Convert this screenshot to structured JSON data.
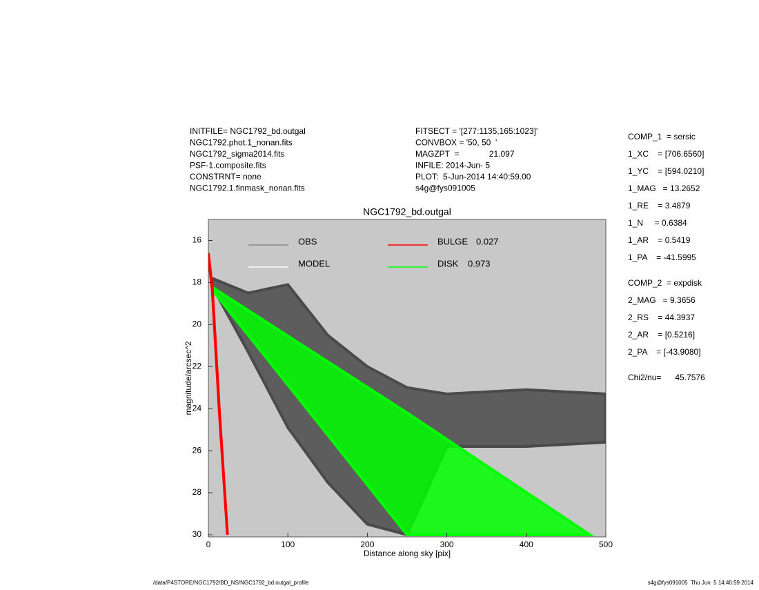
{
  "header": {
    "left": [
      "INITFILE= NGC1792_bd.outgal",
      "NGC1792.phot.1_nonan.fits",
      "NGC1792_sigma2014.fits",
      "PSF-1.composite.fits",
      "CONSTRNT= none",
      "NGC1792.1.finmask_nonan.fits"
    ],
    "middle": [
      "FITSECT = '[277:1135,165:1023]'",
      "CONVBOX = '50, 50  '",
      "MAGZPT  =             21.097",
      "INFILE: 2014-Jun- 5",
      "PLOT:  5-Jun-2014 14:40:59.00",
      "s4g@fys091005"
    ]
  },
  "params": [
    "COMP_1  = sersic",
    "1_XC    = [706.6560]",
    "1_YC    = [594.0210]",
    "1_MAG   = 13.2652",
    "1_RE    = 3.4879",
    "1_N     = 0.6384",
    "1_AR    = 0.5419",
    "1_PA    = -41.5995",
    "COMP_2  = expdisk",
    "2_MAG   = 9.3656",
    "2_RS    = 44.3937",
    "2_AR    = [0.5216]",
    "2_PA    = [-43.9080]",
    "Chi2/nu=      45.7576"
  ],
  "footer": {
    "left": "/data/P4STORE/NGC1792/BD_NS/NGC1792_bd.outgal_profile",
    "right": "s4g@fys091005  Thu Jun  5 14:40:59 2014"
  },
  "chart_data": {
    "type": "band",
    "title": "NGC1792_bd.outgal",
    "x_label": "Distance along sky [pix]",
    "y_label": "magnitude/arcsec^2",
    "xlim": [
      0,
      500
    ],
    "ylim": [
      30.1,
      15
    ],
    "xticks": [
      0,
      100,
      200,
      300,
      400,
      500
    ],
    "yticks": [
      16,
      18,
      20,
      22,
      24,
      26,
      28,
      30
    ],
    "legend": [
      {
        "label": "OBS",
        "color": "#8a8a8a"
      },
      {
        "label": "MODEL",
        "color": "#ffffff"
      },
      {
        "label": "BULGE",
        "fraction": 0.027,
        "color": "#ff0000"
      },
      {
        "label": "DISK",
        "fraction": 0.973,
        "color": "#00ff00"
      }
    ],
    "series": [
      {
        "name": "OBS",
        "color": "#4a4a4a",
        "x": [
          5,
          50,
          100,
          150,
          200,
          250,
          300,
          400,
          500
        ],
        "bright": [
          17.8,
          18.5,
          18.1,
          20.5,
          22,
          23,
          23.3,
          23.1,
          23.3
        ],
        "faint": [
          18.2,
          21.3,
          24.9,
          27.5,
          29.5,
          30,
          25.8,
          25.8,
          25.6
        ]
      },
      {
        "name": "DISK",
        "color": "#00ff00",
        "x": [
          8,
          250,
          480
        ],
        "bright": [
          18.3,
          24.2,
          30
        ],
        "faint": [
          18.5,
          30,
          30
        ]
      },
      {
        "name": "BULGE",
        "color": "#ff0000",
        "x": [
          0,
          5,
          14,
          24
        ],
        "bright": [
          16.6,
          18.3,
          24.2,
          30
        ],
        "faint": [
          16.7,
          18.4,
          24.3,
          30
        ]
      }
    ]
  }
}
